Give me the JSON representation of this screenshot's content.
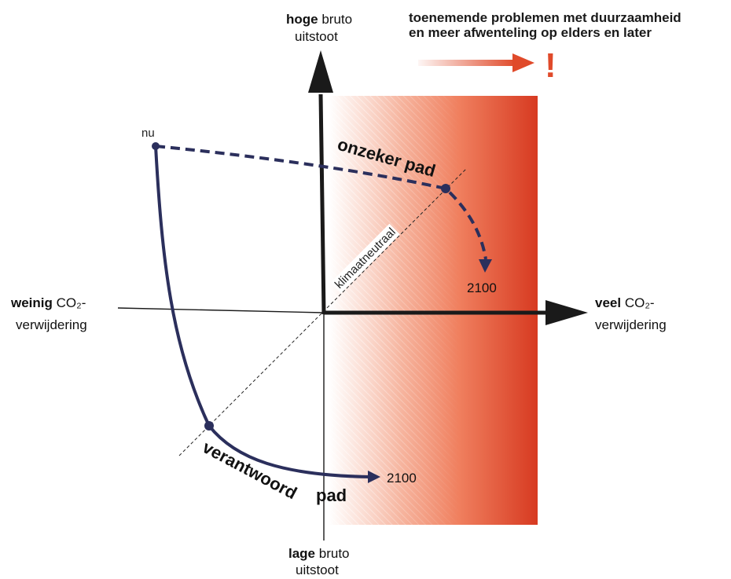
{
  "axes": {
    "top": {
      "bold": "hoge",
      "rest": "bruto",
      "line2": "uitstoot"
    },
    "bottom": {
      "bold": "lage",
      "rest": "bruto",
      "line2": "uitstoot"
    },
    "left": {
      "bold": "weinig",
      "rest": "CO₂-",
      "line2": "verwijdering"
    },
    "right": {
      "bold": "veel",
      "rest": "CO₂-",
      "line2": "verwijdering"
    }
  },
  "warning": {
    "line1": "toenemende problemen met duurzaamheid",
    "line2": "en meer afwenteling op elders en later",
    "mark": "!"
  },
  "labels": {
    "now": "nu",
    "climate_neutral": "klimaatneutraal",
    "uncertain_path": "onzeker pad",
    "responsible_path_1": "verantwoord",
    "responsible_path_2": "pad",
    "year_uncertain": "2100",
    "year_responsible": "2100"
  },
  "colors": {
    "path": "#2b2f5c",
    "arrow": "#1a1a1a",
    "gradient_start": "#ffffff",
    "gradient_mid": "#f08060",
    "gradient_end": "#d83a22",
    "warn_arrow": "#e04a2a"
  }
}
